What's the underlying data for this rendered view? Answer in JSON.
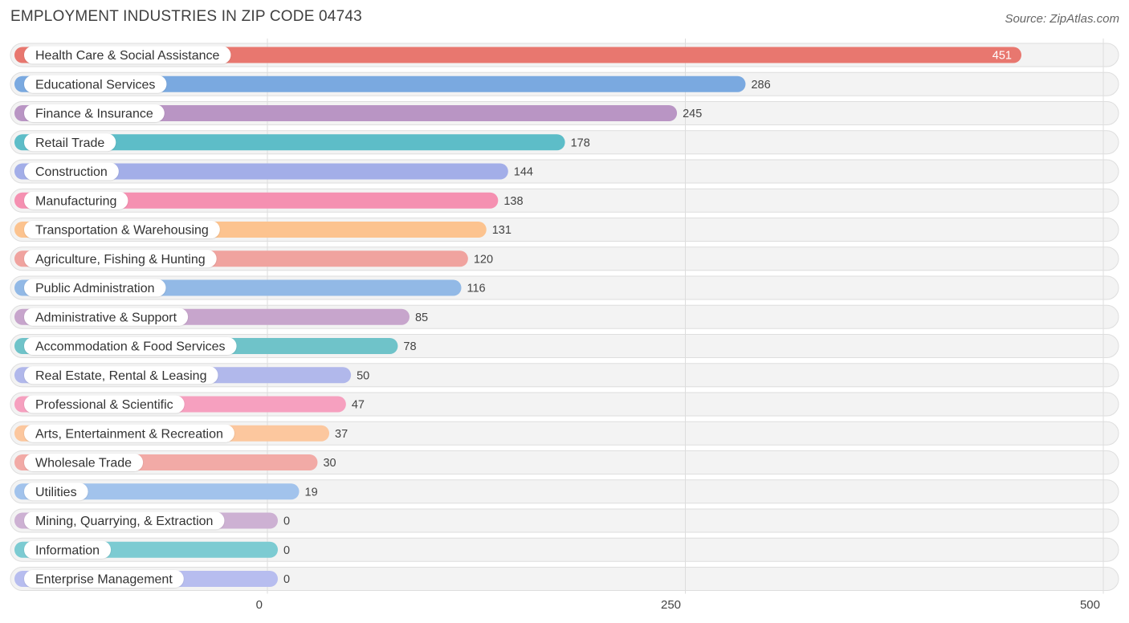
{
  "chart_data": {
    "type": "bar",
    "orientation": "horizontal",
    "title": "EMPLOYMENT INDUSTRIES IN ZIP CODE 04743",
    "source": "Source: ZipAtlas.com",
    "xlabel": "",
    "ylabel": "",
    "xlim": [
      0,
      500
    ],
    "ticks": [
      0,
      250,
      500
    ],
    "grid": true,
    "categories": [
      "Health Care & Social Assistance",
      "Educational Services",
      "Finance & Insurance",
      "Retail Trade",
      "Construction",
      "Manufacturing",
      "Transportation & Warehousing",
      "Agriculture, Fishing & Hunting",
      "Public Administration",
      "Administrative & Support",
      "Accommodation & Food Services",
      "Real Estate, Rental & Leasing",
      "Professional & Scientific",
      "Arts, Entertainment & Recreation",
      "Wholesale Trade",
      "Utilities",
      "Mining, Quarrying, & Extraction",
      "Information",
      "Enterprise Management"
    ],
    "values": [
      451,
      286,
      245,
      178,
      144,
      138,
      131,
      120,
      116,
      85,
      78,
      50,
      47,
      37,
      30,
      19,
      0,
      0,
      0
    ],
    "colors": [
      "#e8776f",
      "#7aa9e0",
      "#b995c4",
      "#5dbdc8",
      "#a3aee8",
      "#f590b1",
      "#fcc38f",
      "#f0a39f",
      "#92b9e6",
      "#c7a5cc",
      "#6fc3c9",
      "#b1b8eb",
      "#f6a0bf",
      "#fcc79e",
      "#f2aaa6",
      "#a2c3ec",
      "#cdb1d3",
      "#7ccbd2",
      "#b7bdef"
    ]
  }
}
